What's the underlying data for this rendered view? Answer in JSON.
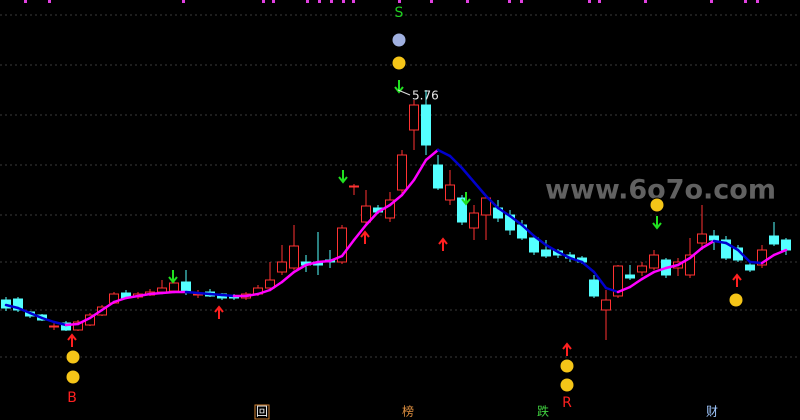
{
  "chart_data": {
    "type": "candlestick",
    "ylim": [
      2.46,
      6.66
    ],
    "up_color": "#ff3232",
    "down_color": "#54ffff",
    "open": [
      3.66,
      3.67,
      3.54,
      3.51,
      3.4,
      3.43,
      3.36,
      3.41,
      3.51,
      3.63,
      3.73,
      3.69,
      3.71,
      3.74,
      3.75,
      3.84,
      3.72,
      3.74,
      3.72,
      3.7,
      3.68,
      3.72,
      3.78,
      3.94,
      3.98,
      4.04,
      4.04,
      4.06,
      4.04,
      4.8,
      4.44,
      4.58,
      4.48,
      4.76,
      5.36,
      5.61,
      5.01,
      4.66,
      4.68,
      4.38,
      4.51,
      4.58,
      4.51,
      4.41,
      4.28,
      4.16,
      4.15,
      4.11,
      4.08,
      3.86,
      3.56,
      3.7,
      3.91,
      3.94,
      3.98,
      4.06,
      3.98,
      3.91,
      4.23,
      4.3,
      4.26,
      4.18,
      4.01,
      4.01,
      4.3,
      4.26
    ],
    "close": [
      3.58,
      3.56,
      3.5,
      3.46,
      3.4,
      3.36,
      3.44,
      3.51,
      3.59,
      3.72,
      3.68,
      3.72,
      3.74,
      3.78,
      3.83,
      3.74,
      3.72,
      3.7,
      3.68,
      3.68,
      3.72,
      3.78,
      3.86,
      4.04,
      4.2,
      4.01,
      4.01,
      4.04,
      4.38,
      4.8,
      4.6,
      4.54,
      4.66,
      5.11,
      5.61,
      5.21,
      4.78,
      4.81,
      4.44,
      4.53,
      4.68,
      4.48,
      4.36,
      4.28,
      4.14,
      4.1,
      4.11,
      4.08,
      4.04,
      3.7,
      3.66,
      4.0,
      3.88,
      4.0,
      4.11,
      3.91,
      4.04,
      4.11,
      4.32,
      4.26,
      4.08,
      4.06,
      3.96,
      4.16,
      4.22,
      4.16
    ],
    "high": [
      3.69,
      3.69,
      3.55,
      3.52,
      3.43,
      3.45,
      3.46,
      3.53,
      3.61,
      3.74,
      3.76,
      3.74,
      3.77,
      3.86,
      3.86,
      3.96,
      3.76,
      3.77,
      3.73,
      3.72,
      3.74,
      3.81,
      4.04,
      4.21,
      4.41,
      4.11,
      4.34,
      4.16,
      4.41,
      4.82,
      4.76,
      4.61,
      4.74,
      5.16,
      5.66,
      5.76,
      5.11,
      4.96,
      4.71,
      4.61,
      4.71,
      4.66,
      4.56,
      4.46,
      4.3,
      4.26,
      4.17,
      4.14,
      4.1,
      3.91,
      3.76,
      4.01,
      4.01,
      4.04,
      4.16,
      4.08,
      4.08,
      4.28,
      4.61,
      4.36,
      4.3,
      4.21,
      4.04,
      4.21,
      4.44,
      4.28
    ],
    "low": [
      3.55,
      3.54,
      3.48,
      3.45,
      3.36,
      3.35,
      3.35,
      3.4,
      3.5,
      3.62,
      3.67,
      3.67,
      3.7,
      3.72,
      3.73,
      3.71,
      3.68,
      3.69,
      3.66,
      3.66,
      3.66,
      3.7,
      3.77,
      3.91,
      3.96,
      3.94,
      3.91,
      3.98,
      4.02,
      4.71,
      4.42,
      4.52,
      4.44,
      4.71,
      5.16,
      5.11,
      4.76,
      4.61,
      4.41,
      4.26,
      4.26,
      4.44,
      4.31,
      4.26,
      4.11,
      4.08,
      4.08,
      4.04,
      4.02,
      3.68,
      3.26,
      3.68,
      3.86,
      3.9,
      3.96,
      3.88,
      3.9,
      3.88,
      4.16,
      4.16,
      4.06,
      4.04,
      3.94,
      3.98,
      4.2,
      4.11
    ],
    "ma": {
      "rise_color": "#ff00ff",
      "fall_color": "#0000cd",
      "values": [
        3.61,
        3.58,
        3.53,
        3.48,
        3.44,
        3.41,
        3.42,
        3.48,
        3.56,
        3.64,
        3.68,
        3.7,
        3.72,
        3.73,
        3.74,
        3.74,
        3.73,
        3.72,
        3.71,
        3.7,
        3.7,
        3.72,
        3.76,
        3.84,
        3.94,
        4.01,
        4.04,
        4.05,
        4.1,
        4.26,
        4.41,
        4.54,
        4.61,
        4.71,
        4.86,
        5.06,
        5.16,
        5.1,
        4.98,
        4.84,
        4.7,
        4.58,
        4.5,
        4.41,
        4.3,
        4.21,
        4.14,
        4.08,
        4.04,
        3.94,
        3.78,
        3.74,
        3.79,
        3.87,
        3.94,
        3.98,
        4.01,
        4.08,
        4.18,
        4.25,
        4.23,
        4.16,
        4.04,
        4.03,
        4.11,
        4.16
      ]
    },
    "annotations": [
      "S",
      "B",
      "R"
    ],
    "tabs": [
      "回",
      "榜",
      "跌",
      "财"
    ],
    "watermark": "www.6o7o.com"
  }
}
